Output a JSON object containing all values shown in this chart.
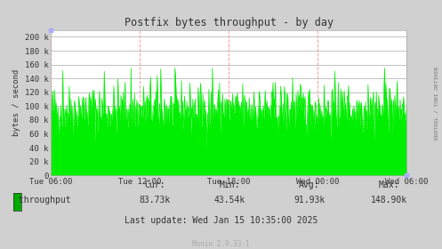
{
  "title": "Postfix bytes throughput - by day",
  "ylabel": "bytes / second",
  "yticks": [
    0,
    20000,
    40000,
    60000,
    80000,
    100000,
    120000,
    140000,
    160000,
    180000,
    200000
  ],
  "ytick_labels": [
    "0",
    "20 k",
    "40 k",
    "60 k",
    "80 k",
    "100 k",
    "120 k",
    "140 k",
    "160 k",
    "180 k",
    "200 k"
  ],
  "ylim": [
    0,
    210000
  ],
  "xtick_labels": [
    "Tue 06:00",
    "Tue 12:00",
    "Tue 18:00",
    "Wed 00:00",
    "Wed 06:00"
  ],
  "bg_color": "#d0d0d0",
  "plot_bg_color": "#ffffff",
  "grid_color_major": "#aaaaaa",
  "grid_color_minor": "#ff9999",
  "line_color": "#00ee00",
  "title_color": "#333333",
  "label_color": "#333333",
  "legend_label": "throughput",
  "legend_color": "#00aa00",
  "cur": "83.73k",
  "min": "43.54k",
  "avg": "91.93k",
  "max": "148.90k",
  "last_update": "Wed Jan 15 10:35:00 2025",
  "footer": "Munin 2.0.33-1",
  "watermark": "RRDTOOL / TOBI OETIKER",
  "seed": 42,
  "n_points": 600
}
